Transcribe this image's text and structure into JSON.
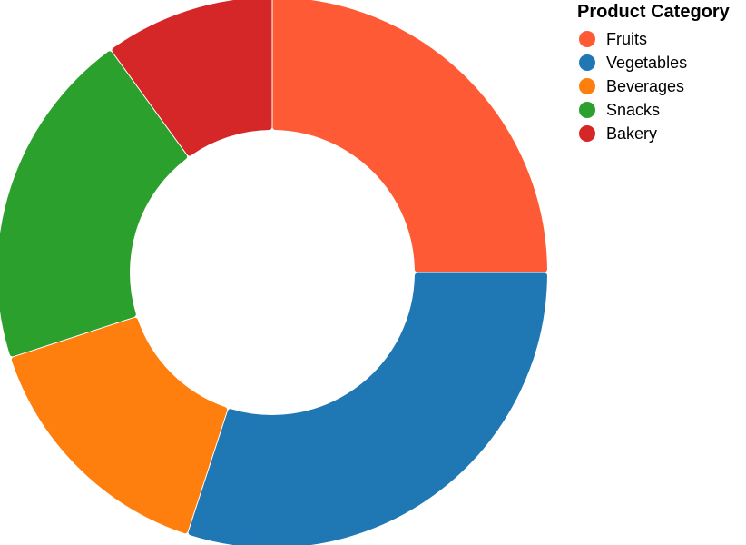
{
  "chart_data": {
    "type": "pie",
    "variant": "donut",
    "legend_title": "Product Category",
    "legend_position": "top-right",
    "categories": [
      "Fruits",
      "Vegetables",
      "Beverages",
      "Snacks",
      "Bakery"
    ],
    "values": [
      25,
      30,
      15,
      20,
      10
    ],
    "colors": [
      "#ff5a36",
      "#1f77b4",
      "#ff7f0e",
      "#2ca02c",
      "#d62728"
    ]
  }
}
